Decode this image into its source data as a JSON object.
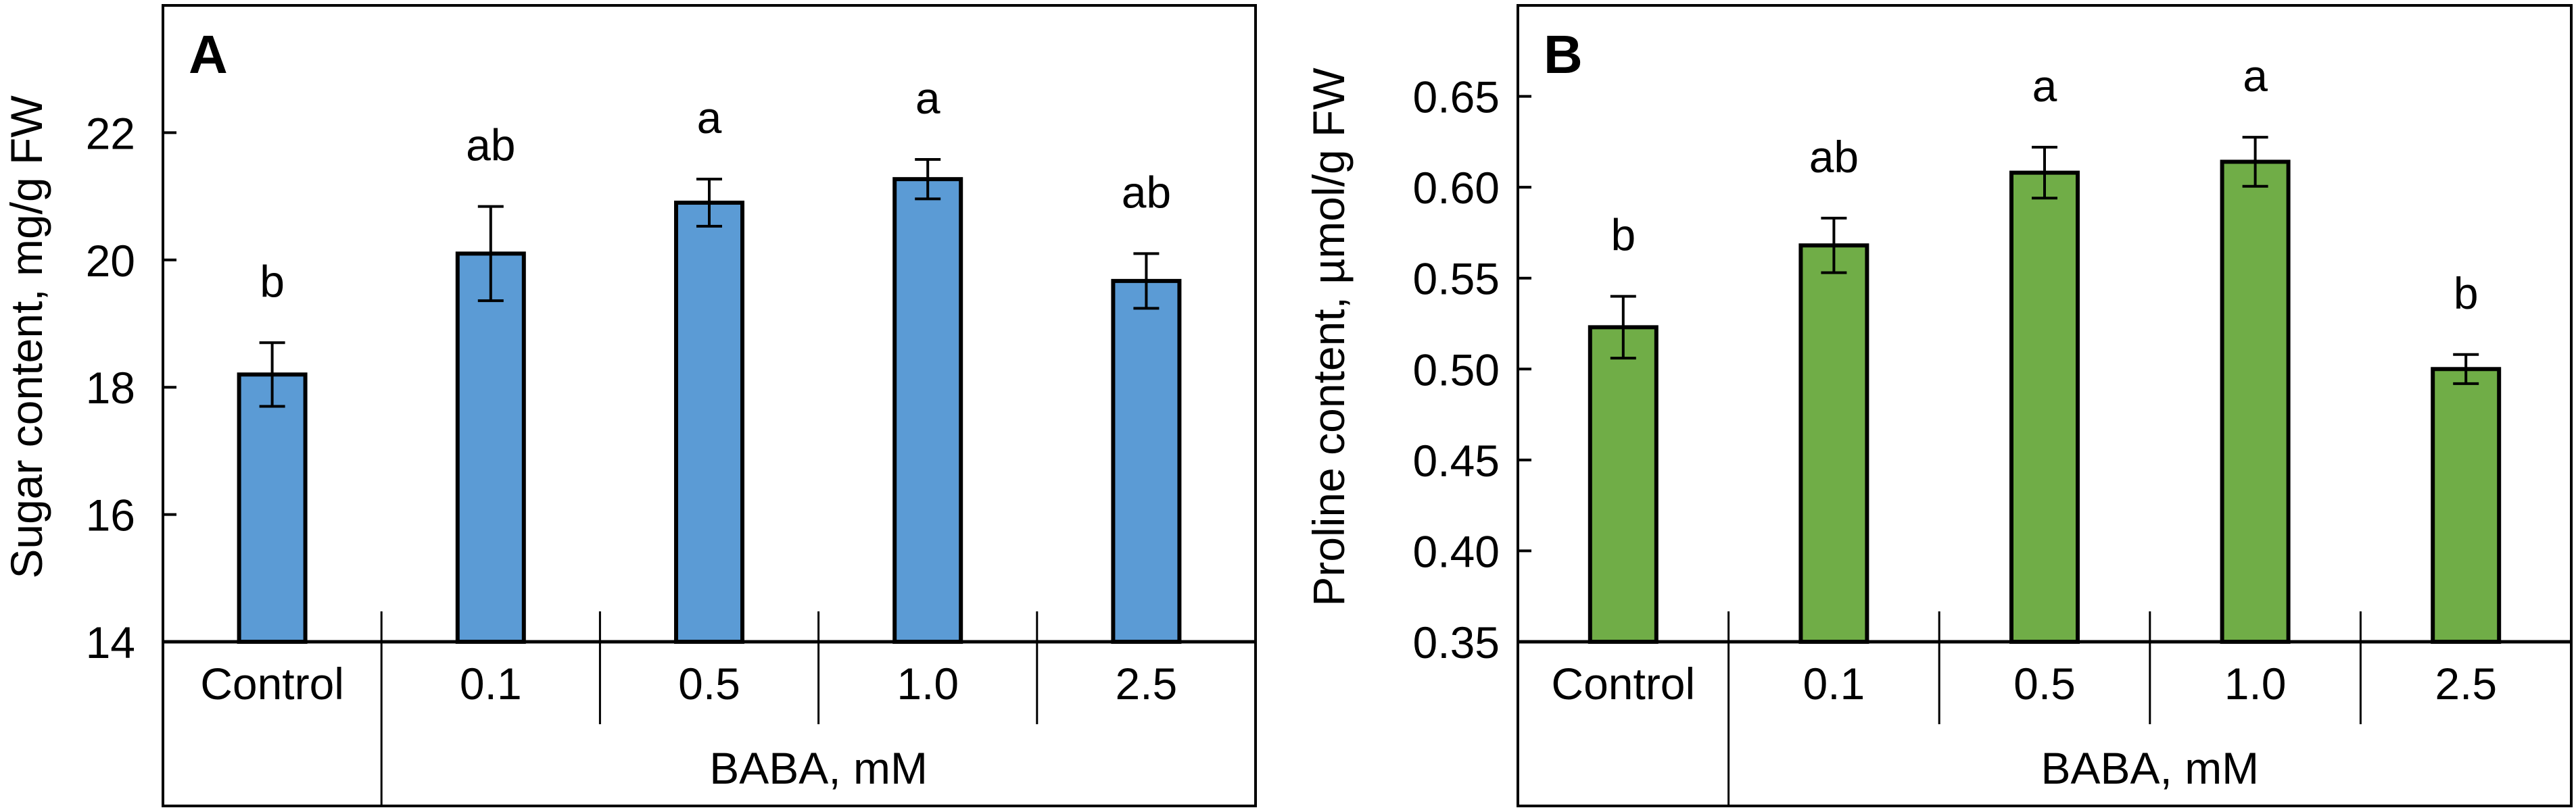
{
  "chart_data": [
    {
      "type": "bar",
      "panel_label": "A",
      "categories": [
        "Control",
        "0.1",
        "0.5",
        "1.0",
        "2.5"
      ],
      "group_label": "BABA, mM",
      "values": [
        18.2,
        20.1,
        20.9,
        21.27,
        19.67
      ],
      "errors": [
        0.5,
        0.74,
        0.37,
        0.31,
        0.43
      ],
      "significance": [
        "b",
        "ab",
        "a",
        "a",
        "ab"
      ],
      "ylabel": "Sugar content, mg/g FW",
      "ylim": [
        14,
        24
      ],
      "yticks": [
        "14",
        "16",
        "18",
        "20",
        "22"
      ],
      "ytick_values": [
        14,
        16,
        18,
        20,
        22
      ],
      "grid": false,
      "bar_color": "#5b9bd5"
    },
    {
      "type": "bar",
      "panel_label": "B",
      "categories": [
        "Control",
        "0.1",
        "0.5",
        "1.0",
        "2.5"
      ],
      "group_label": "BABA, mM",
      "values": [
        0.523,
        0.568,
        0.608,
        0.614,
        0.5
      ],
      "errors": [
        0.017,
        0.015,
        0.014,
        0.0135,
        0.008
      ],
      "significance": [
        "b",
        "ab",
        "a",
        "a",
        "b"
      ],
      "ylabel": "Proline content, µmol/g FW",
      "ylim": [
        0.35,
        0.7
      ],
      "yticks": [
        "0.35",
        "0.40",
        "0.45",
        "0.50",
        "0.55",
        "0.60",
        "0.65"
      ],
      "ytick_values": [
        0.35,
        0.4,
        0.45,
        0.5,
        0.55,
        0.6,
        0.65
      ],
      "grid": false,
      "bar_color": "#70ad47"
    }
  ]
}
